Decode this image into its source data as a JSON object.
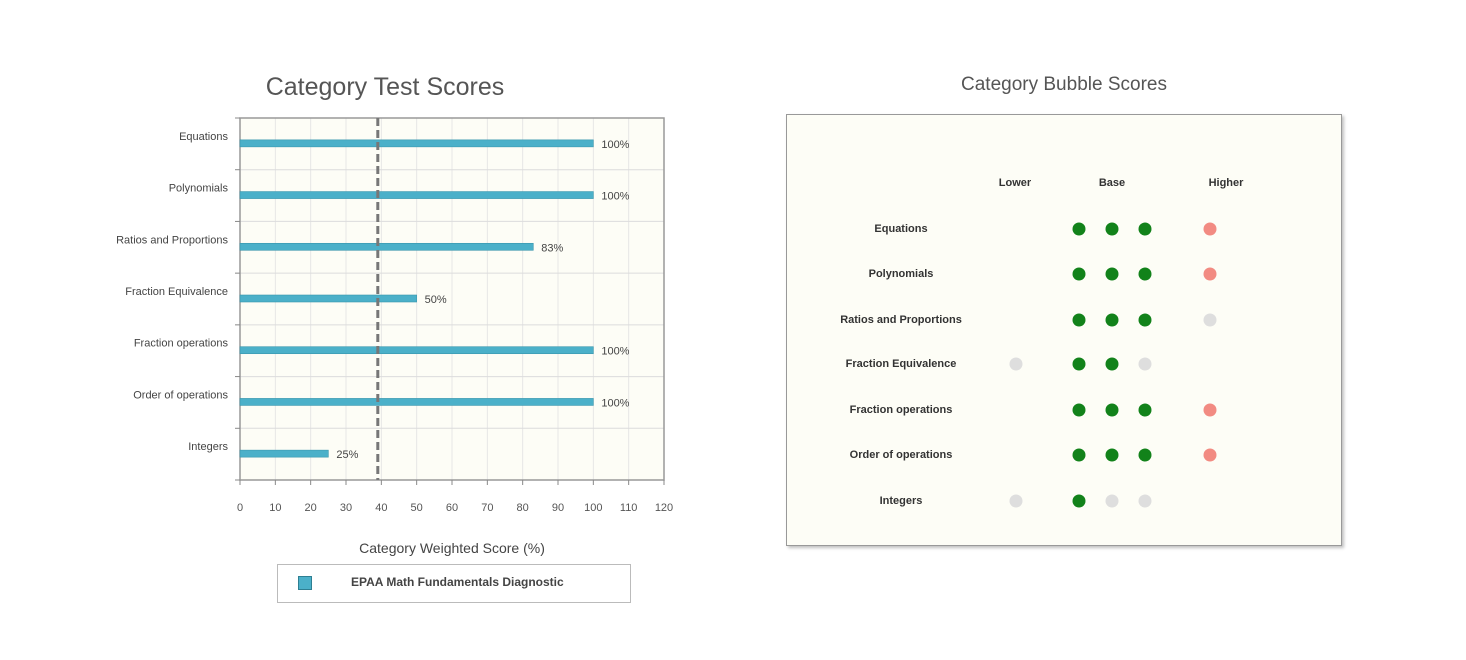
{
  "chart_data": [
    {
      "type": "bar",
      "orientation": "horizontal",
      "title": "Category Test Scores",
      "xlabel": "Category Weighted Score (%)",
      "ylabel": "",
      "xlim": [
        0,
        120
      ],
      "xticks": [
        0,
        10,
        20,
        30,
        40,
        50,
        60,
        70,
        80,
        90,
        100,
        110,
        120
      ],
      "grid": true,
      "reference_line": 39,
      "categories": [
        "Equations",
        "Polynomials",
        "Ratios and Proportions",
        "Fraction Equivalence",
        "Fraction operations",
        "Order of operations",
        "Integers"
      ],
      "series": [
        {
          "name": "EPAA Math Fundamentals Diagnostic",
          "values": [
            100,
            100,
            83,
            50,
            100,
            100,
            25
          ],
          "labels": [
            "100%",
            "100%",
            "83%",
            "50%",
            "100%",
            "100%",
            "25%"
          ],
          "color": "#4bb0c9"
        }
      ],
      "legend_position": "bottom"
    },
    {
      "type": "table",
      "title": "Category Bubble Scores",
      "columns": [
        "Lower",
        "Base",
        "Higher"
      ],
      "rows": [
        {
          "label": "Equations",
          "lower": null,
          "base": [
            "filled",
            "filled",
            "filled"
          ],
          "higher": "red"
        },
        {
          "label": "Polynomials",
          "lower": null,
          "base": [
            "filled",
            "filled",
            "filled"
          ],
          "higher": "red"
        },
        {
          "label": "Ratios and Proportions",
          "lower": null,
          "base": [
            "filled",
            "filled",
            "filled"
          ],
          "higher": "empty"
        },
        {
          "label": "Fraction Equivalence",
          "lower": "empty",
          "base": [
            "filled",
            "filled",
            "empty"
          ],
          "higher": null
        },
        {
          "label": "Fraction operations",
          "lower": null,
          "base": [
            "filled",
            "filled",
            "filled"
          ],
          "higher": "red"
        },
        {
          "label": "Order of operations",
          "lower": null,
          "base": [
            "filled",
            "filled",
            "filled"
          ],
          "higher": "red"
        },
        {
          "label": "Integers",
          "lower": "empty",
          "base": [
            "filled",
            "empty",
            "empty"
          ],
          "higher": null
        }
      ],
      "colors": {
        "filled": "#12821a",
        "empty": "#dedede",
        "red": "#f28b82"
      }
    }
  ]
}
